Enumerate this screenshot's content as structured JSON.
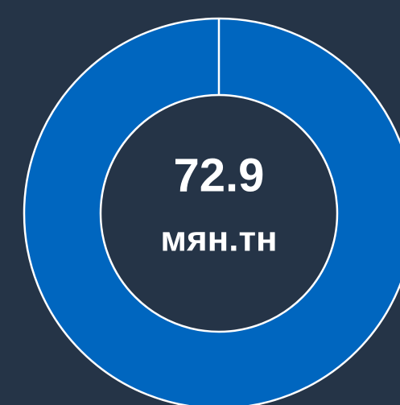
{
  "chart_data": {
    "type": "donut",
    "values": [
      72.9
    ],
    "unit": "мян.тн",
    "color": "#0066bf"
  }
}
